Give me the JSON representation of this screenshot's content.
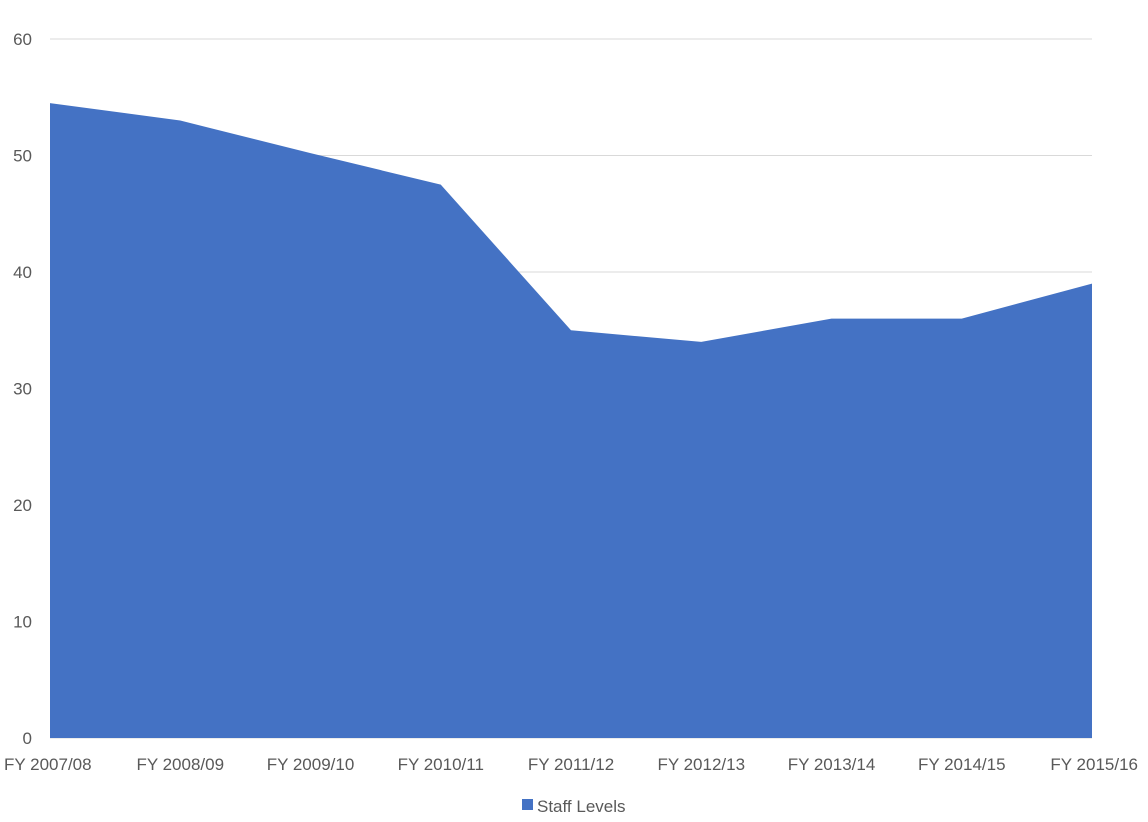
{
  "chart_data": {
    "type": "area",
    "categories": [
      "FY 2007/08",
      "FY 2008/09",
      "FY 2009/10",
      "FY 2010/11",
      "FY 2011/12",
      "FY 2012/13",
      "FY 2013/14",
      "FY 2014/15",
      "FY 2015/16"
    ],
    "series": [
      {
        "name": "Staff Levels",
        "color": "#4472c4",
        "values": [
          54.5,
          53,
          50.2,
          47.5,
          35,
          34,
          36,
          36,
          39
        ]
      }
    ],
    "yticks": [
      "0",
      "10",
      "20",
      "30",
      "40",
      "50",
      "60"
    ],
    "ylim": [
      0,
      60
    ],
    "grid": true,
    "legend_position": "bottom"
  }
}
